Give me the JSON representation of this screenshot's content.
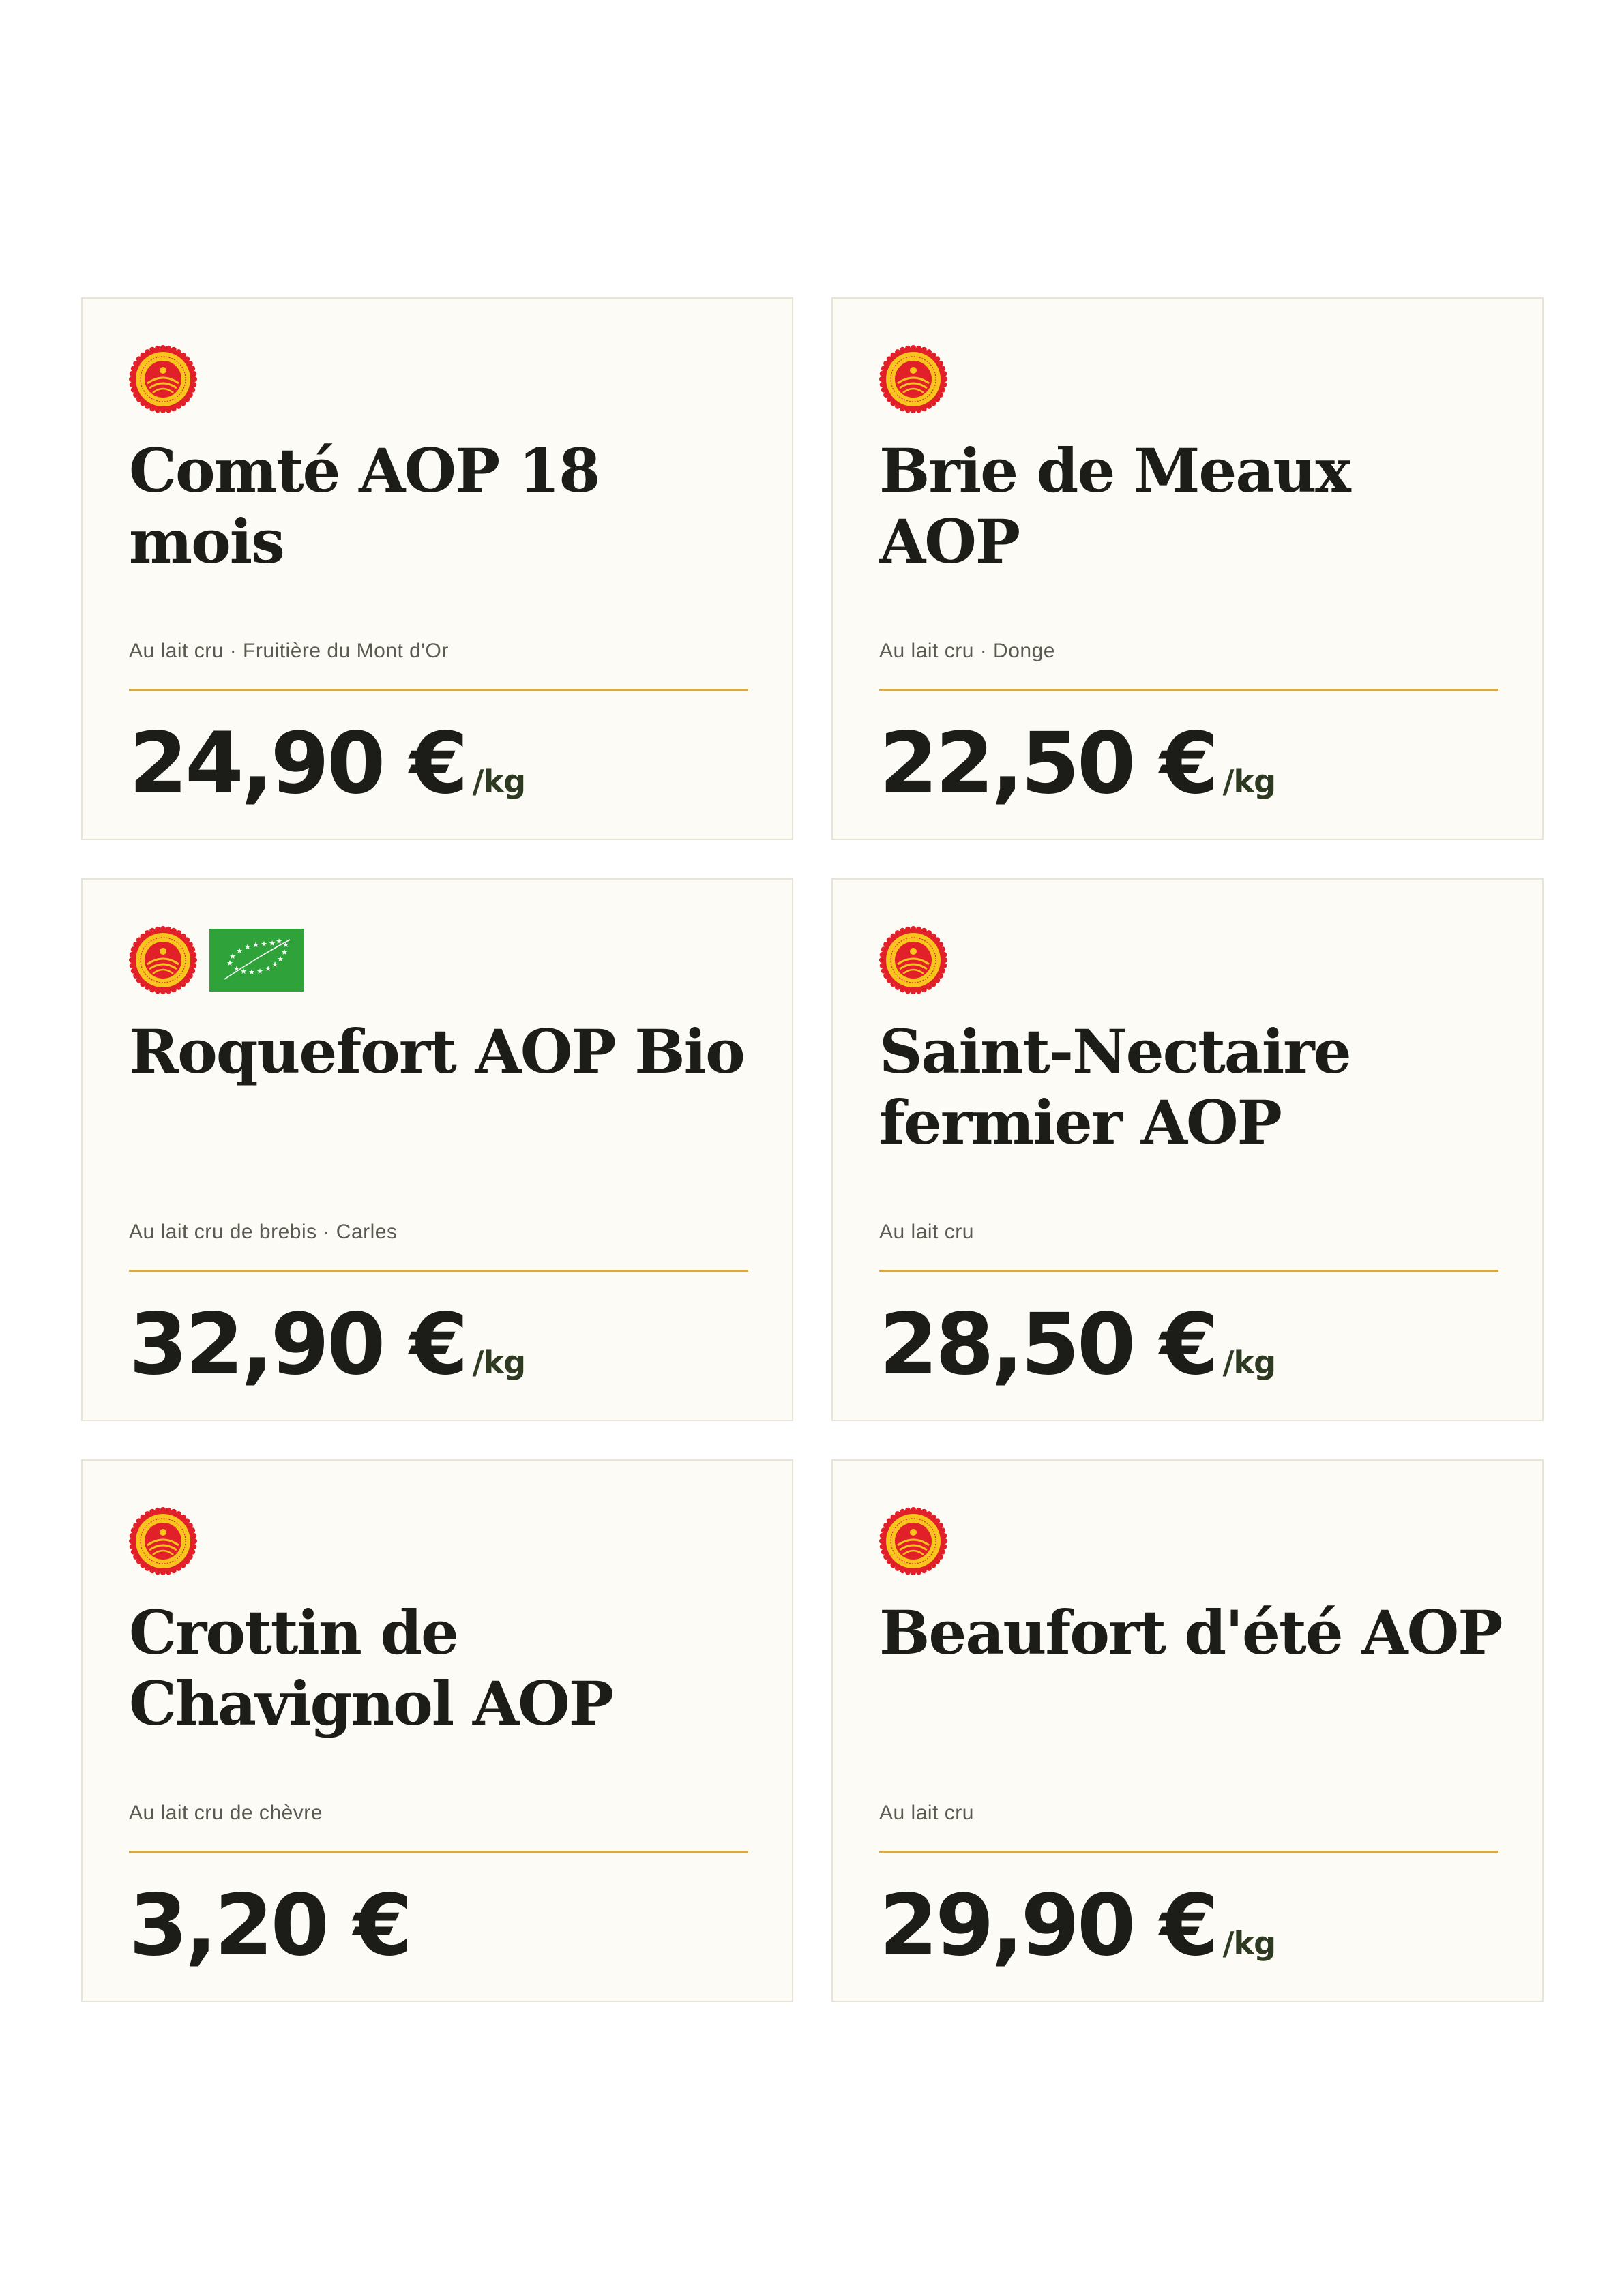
{
  "colors": {
    "card_background": "#fcfbf6",
    "card_border": "#e9e5d6",
    "divider": "#d6a94a",
    "text": "#1c1c18",
    "unit_text": "#2f3a22",
    "aop_red": "#e2202a",
    "aop_yellow": "#f7c51e",
    "bio_green": "#2fa23a"
  },
  "labels": [
    {
      "name": "Comté AOP 18 mois",
      "subtitle": "Au lait cru · Fruitière du Mont d'Or",
      "price": "24,90 €",
      "unit": "/kg",
      "badges": [
        "aop-seal-icon"
      ]
    },
    {
      "name": "Brie de Meaux AOP",
      "subtitle": "Au lait cru · Donge",
      "price": "22,50 €",
      "unit": "/kg",
      "badges": [
        "aop-seal-icon"
      ]
    },
    {
      "name": "Roquefort AOP Bio",
      "subtitle": "Au lait cru de brebis · Carles",
      "price": "32,90 €",
      "unit": "/kg",
      "badges": [
        "aop-seal-icon",
        "eu-organic-leaf-icon"
      ]
    },
    {
      "name": "Saint-Nectaire fermier AOP",
      "subtitle": "Au lait cru",
      "price": "28,50 €",
      "unit": "/kg",
      "badges": [
        "aop-seal-icon"
      ]
    },
    {
      "name": "Crottin de Chavignol AOP",
      "subtitle": "Au lait cru de chèvre",
      "price": "3,20 €",
      "unit": "",
      "badges": [
        "aop-seal-icon"
      ]
    },
    {
      "name": "Beaufort d'été AOP",
      "subtitle": "Au lait cru",
      "price": "29,90 €",
      "unit": "/kg",
      "badges": [
        "aop-seal-icon"
      ]
    }
  ]
}
